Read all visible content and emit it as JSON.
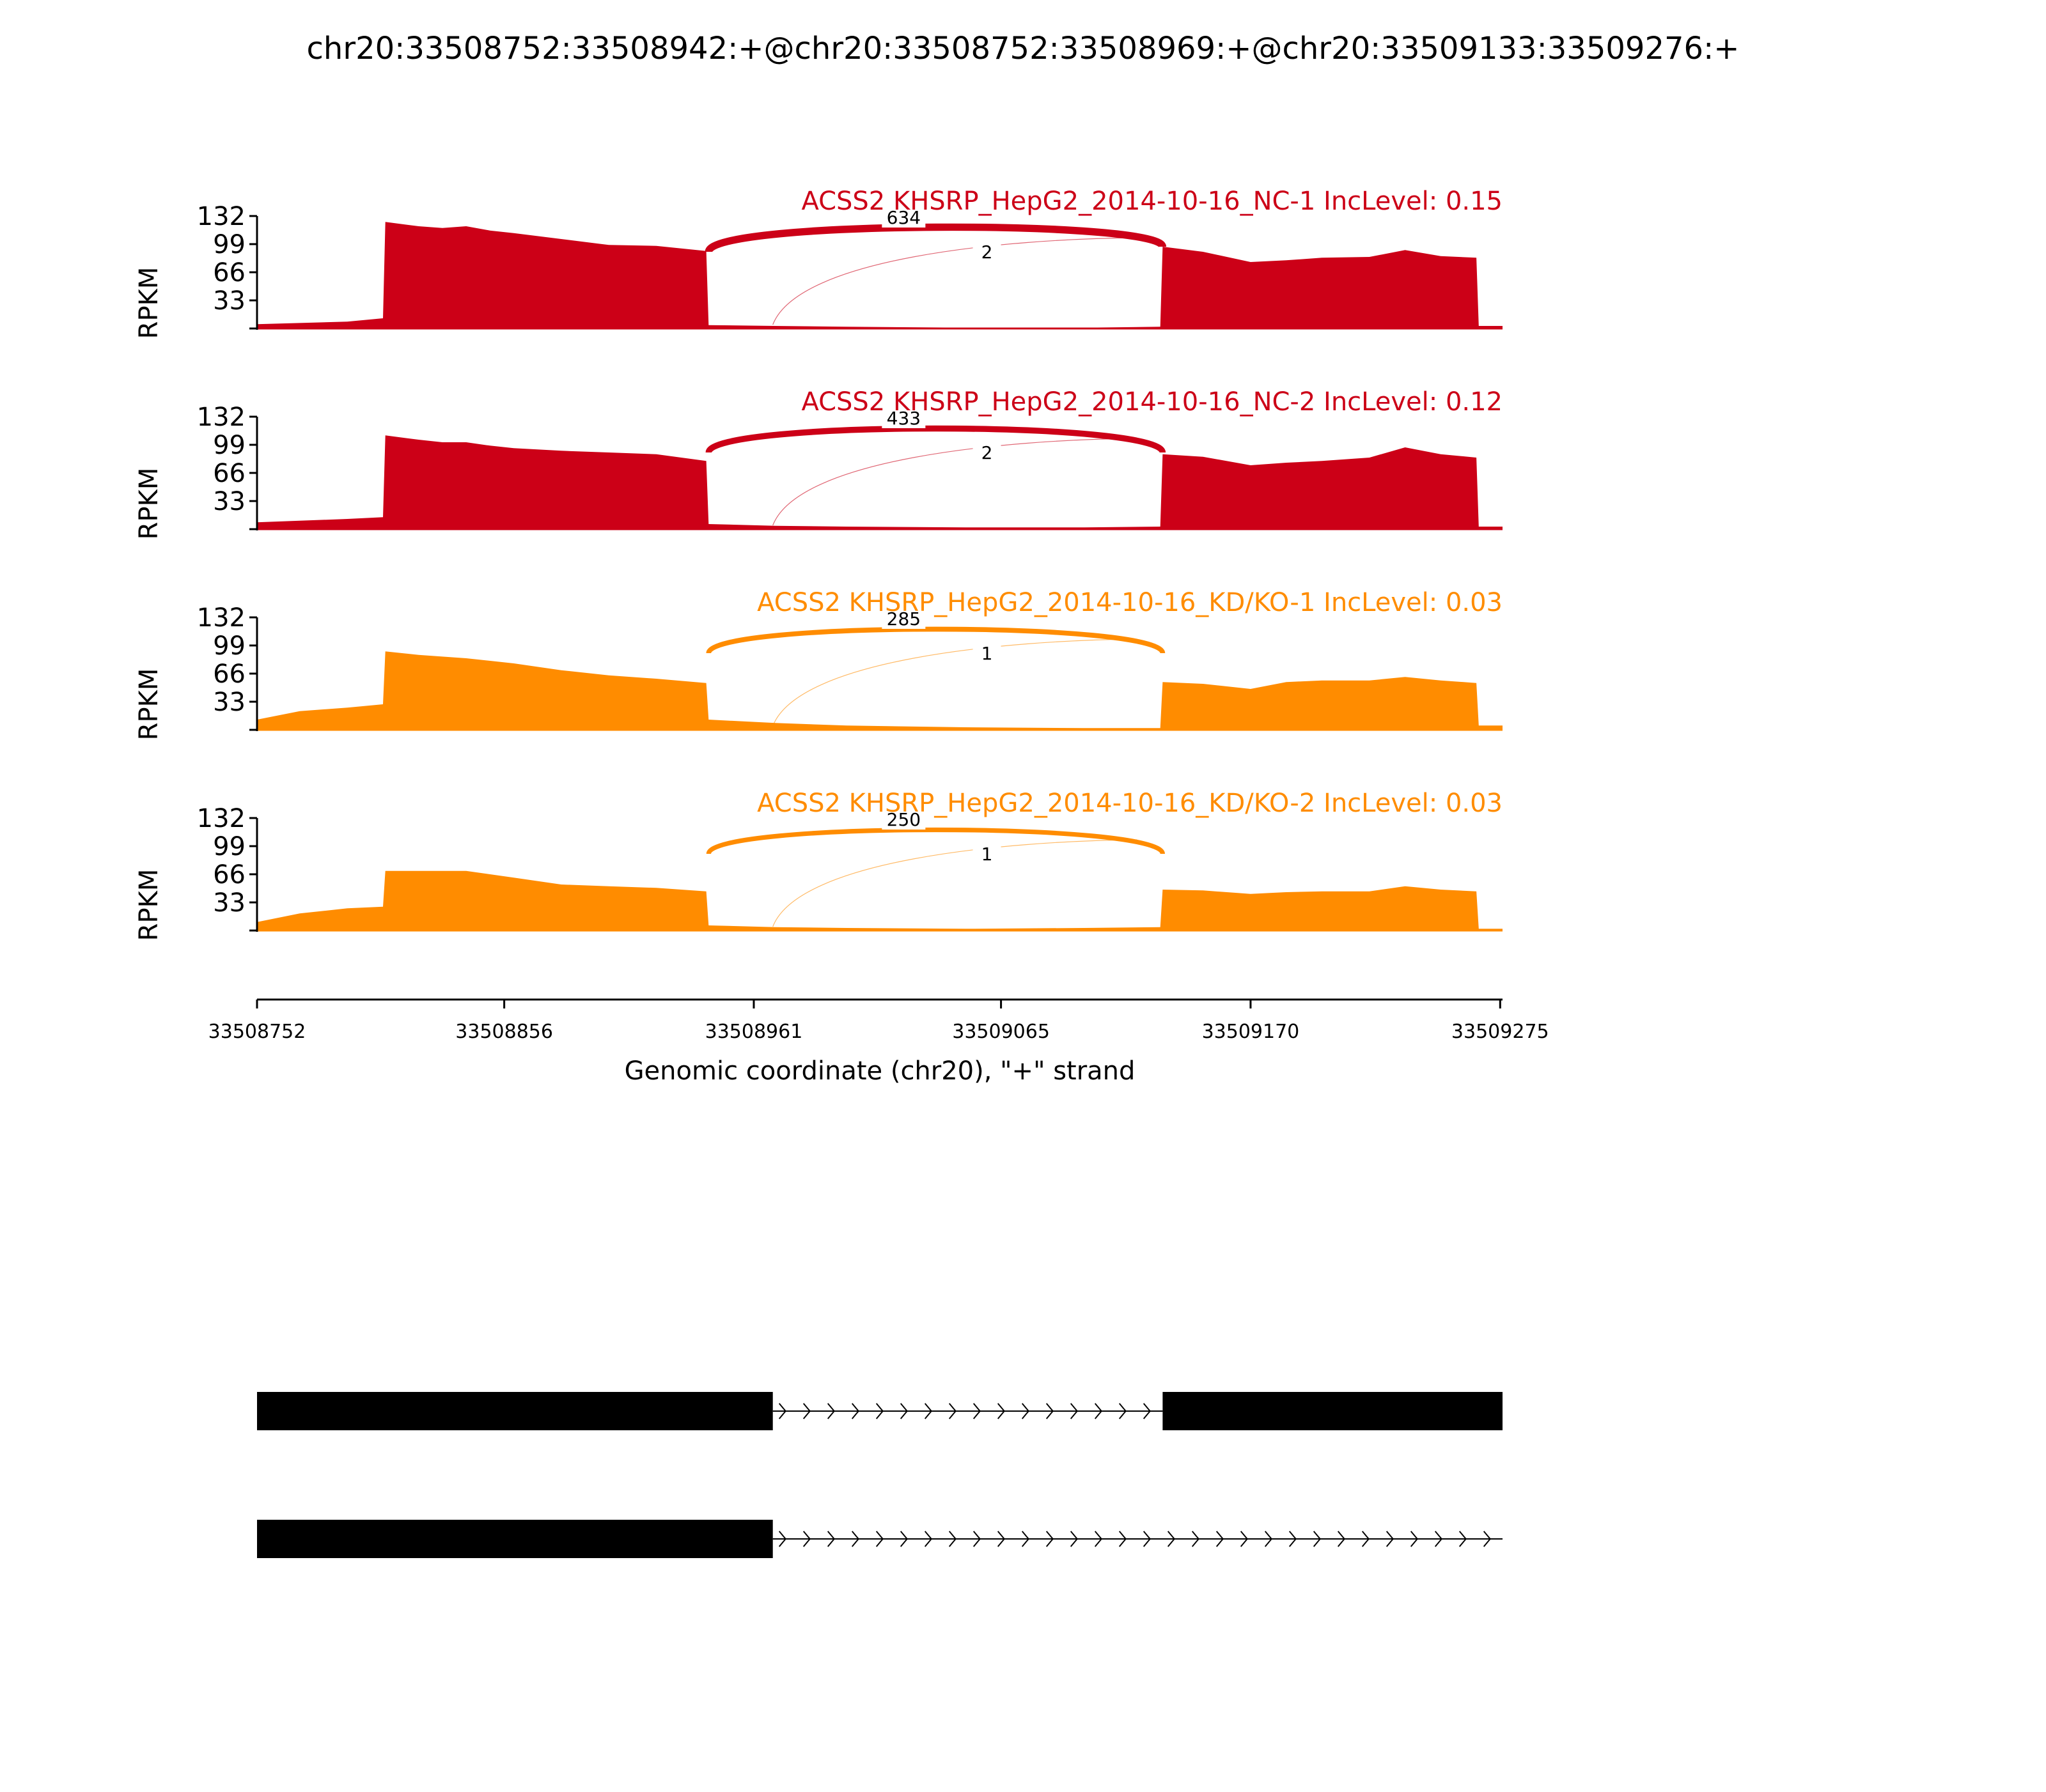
{
  "title": "chr20:33508752:33508942:+@chr20:33508752:33508969:+@chr20:33509133:33509276:+",
  "colors": {
    "nc": "#cc0017",
    "kd": "#ff8c00",
    "axis": "#000000",
    "gene": "#000000"
  },
  "chart_data": {
    "type": "area",
    "title": "chr20:33508752:33508942:+@chr20:33508752:33508969:+@chr20:33509133:33509276:+",
    "xlabel": "Genomic coordinate (chr20), \"+\" strand",
    "ylabel": "RPKM",
    "xlim": [
      33508752,
      33509276
    ],
    "x_ticks": [
      33508752,
      33508856,
      33508961,
      33509065,
      33509170,
      33509275
    ],
    "ylim": [
      0,
      132
    ],
    "y_ticks": [
      33,
      66,
      99,
      132
    ],
    "series": [
      {
        "name": "ACSS2 KHSRP_HepG2_2014-10-16_NC-1 IncLevel: 0.15",
        "color": "#cc0017",
        "points": [
          [
            33508752,
            5
          ],
          [
            33508790,
            8
          ],
          [
            33508805,
            12
          ],
          [
            33508806,
            125
          ],
          [
            33508820,
            120
          ],
          [
            33508830,
            118
          ],
          [
            33508840,
            120
          ],
          [
            33508850,
            115
          ],
          [
            33508860,
            112
          ],
          [
            33508880,
            105
          ],
          [
            33508900,
            98
          ],
          [
            33508920,
            97
          ],
          [
            33508941,
            91
          ],
          [
            33508942,
            4
          ],
          [
            33508970,
            3
          ],
          [
            33509000,
            2
          ],
          [
            33509050,
            1
          ],
          [
            33509100,
            1
          ],
          [
            33509132,
            2
          ],
          [
            33509133,
            96
          ],
          [
            33509150,
            90
          ],
          [
            33509170,
            78
          ],
          [
            33509185,
            80
          ],
          [
            33509200,
            83
          ],
          [
            33509220,
            84
          ],
          [
            33509235,
            92
          ],
          [
            33509250,
            85
          ],
          [
            33509265,
            83
          ],
          [
            33509266,
            3
          ],
          [
            33509276,
            3
          ]
        ],
        "junctions": [
          {
            "count": "634",
            "from": 33508942,
            "to": 33509133,
            "weight": 634
          },
          {
            "count": "2",
            "from": 33508969,
            "to": 33509133,
            "weight": 2
          }
        ]
      },
      {
        "name": "ACSS2 KHSRP_HepG2_2014-10-16_NC-2 IncLevel: 0.12",
        "color": "#cc0017",
        "points": [
          [
            33508752,
            8
          ],
          [
            33508790,
            12
          ],
          [
            33508805,
            14
          ],
          [
            33508806,
            110
          ],
          [
            33508820,
            105
          ],
          [
            33508830,
            102
          ],
          [
            33508840,
            102
          ],
          [
            33508850,
            98
          ],
          [
            33508860,
            95
          ],
          [
            33508880,
            92
          ],
          [
            33508900,
            90
          ],
          [
            33508920,
            88
          ],
          [
            33508941,
            80
          ],
          [
            33508942,
            6
          ],
          [
            33508970,
            4
          ],
          [
            33509000,
            3
          ],
          [
            33509050,
            2
          ],
          [
            33509100,
            2
          ],
          [
            33509132,
            3
          ],
          [
            33509133,
            88
          ],
          [
            33509150,
            85
          ],
          [
            33509170,
            75
          ],
          [
            33509185,
            78
          ],
          [
            33509200,
            80
          ],
          [
            33509220,
            84
          ],
          [
            33509235,
            96
          ],
          [
            33509250,
            88
          ],
          [
            33509265,
            84
          ],
          [
            33509266,
            3
          ],
          [
            33509276,
            3
          ]
        ],
        "junctions": [
          {
            "count": "433",
            "from": 33508942,
            "to": 33509133,
            "weight": 433
          },
          {
            "count": "2",
            "from": 33508969,
            "to": 33509133,
            "weight": 2
          }
        ]
      },
      {
        "name": "ACSS2 KHSRP_HepG2_2014-10-16_KD/KO-1 IncLevel: 0.03",
        "color": "#ff8c00",
        "points": [
          [
            33508752,
            12
          ],
          [
            33508770,
            22
          ],
          [
            33508790,
            26
          ],
          [
            33508805,
            30
          ],
          [
            33508806,
            92
          ],
          [
            33508820,
            88
          ],
          [
            33508840,
            84
          ],
          [
            33508860,
            78
          ],
          [
            33508880,
            70
          ],
          [
            33508900,
            64
          ],
          [
            33508920,
            60
          ],
          [
            33508941,
            55
          ],
          [
            33508942,
            12
          ],
          [
            33508970,
            8
          ],
          [
            33509000,
            5
          ],
          [
            33509050,
            3
          ],
          [
            33509100,
            2
          ],
          [
            33509132,
            2
          ],
          [
            33509133,
            56
          ],
          [
            33509150,
            54
          ],
          [
            33509170,
            48
          ],
          [
            33509185,
            56
          ],
          [
            33509200,
            58
          ],
          [
            33509220,
            58
          ],
          [
            33509235,
            62
          ],
          [
            33509250,
            58
          ],
          [
            33509265,
            55
          ],
          [
            33509266,
            5
          ],
          [
            33509276,
            5
          ]
        ],
        "junctions": [
          {
            "count": "285",
            "from": 33508942,
            "to": 33509133,
            "weight": 285
          },
          {
            "count": "1",
            "from": 33508969,
            "to": 33509133,
            "weight": 1
          }
        ]
      },
      {
        "name": "ACSS2 KHSRP_HepG2_2014-10-16_KD/KO-2 IncLevel: 0.03",
        "color": "#ff8c00",
        "points": [
          [
            33508752,
            10
          ],
          [
            33508770,
            20
          ],
          [
            33508790,
            26
          ],
          [
            33508805,
            28
          ],
          [
            33508806,
            70
          ],
          [
            33508820,
            70
          ],
          [
            33508840,
            70
          ],
          [
            33508860,
            62
          ],
          [
            33508880,
            54
          ],
          [
            33508900,
            52
          ],
          [
            33508920,
            50
          ],
          [
            33508941,
            46
          ],
          [
            33508942,
            6
          ],
          [
            33508970,
            4
          ],
          [
            33509000,
            3
          ],
          [
            33509050,
            2
          ],
          [
            33509100,
            3
          ],
          [
            33509132,
            4
          ],
          [
            33509133,
            48
          ],
          [
            33509150,
            47
          ],
          [
            33509170,
            43
          ],
          [
            33509185,
            45
          ],
          [
            33509200,
            46
          ],
          [
            33509220,
            46
          ],
          [
            33509235,
            52
          ],
          [
            33509250,
            48
          ],
          [
            33509265,
            46
          ],
          [
            33509266,
            2
          ],
          [
            33509276,
            2
          ]
        ],
        "junctions": [
          {
            "count": "250",
            "from": 33508942,
            "to": 33509133,
            "weight": 250
          },
          {
            "count": "1",
            "from": 33508969,
            "to": 33509133,
            "weight": 1
          }
        ]
      }
    ],
    "gene_models": [
      {
        "exons": [
          [
            33508752,
            33508969
          ],
          [
            33509133,
            33509276
          ]
        ],
        "intron": [
          33508969,
          33509133
        ]
      },
      {
        "exons": [
          [
            33508752,
            33508969
          ]
        ],
        "intron": [
          33508969,
          33509276
        ]
      }
    ]
  }
}
